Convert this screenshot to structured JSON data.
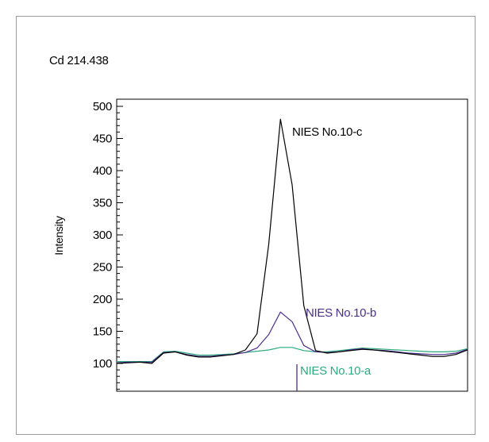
{
  "chart_data": {
    "type": "line",
    "title": "Cd 214.438",
    "xlabel": "",
    "ylabel": "Intensity",
    "ylim": [
      50,
      510
    ],
    "yticks": [
      100,
      150,
      200,
      250,
      300,
      350,
      400,
      450,
      500
    ],
    "grid": false,
    "x": [
      0,
      1,
      2,
      3,
      4,
      5,
      6,
      7,
      8,
      9,
      10,
      11,
      12,
      13,
      14,
      15,
      16,
      17,
      18,
      19,
      20,
      21,
      22,
      23,
      24,
      25,
      26,
      27,
      28,
      29,
      30
    ],
    "series": [
      {
        "name": "NIES No.10-c",
        "color": "#000000",
        "values": [
          100,
          101,
          102,
          100,
          116,
          118,
          113,
          110,
          110,
          112,
          114,
          121,
          146,
          285,
          480,
          378,
          190,
          120,
          116,
          118,
          120,
          122,
          121,
          119,
          117,
          115,
          113,
          111,
          111,
          114,
          121
        ]
      },
      {
        "name": "NIES No.10-b",
        "color": "#4B2E8C",
        "values": [
          101,
          102,
          102,
          102,
          117,
          118,
          114,
          111,
          111,
          113,
          114,
          117,
          124,
          145,
          180,
          165,
          128,
          118,
          117,
          118,
          121,
          123,
          121,
          120,
          118,
          116,
          115,
          114,
          114,
          116,
          122
        ]
      },
      {
        "name": "NIES No.10-a",
        "color": "#2EAA7E",
        "values": [
          103,
          103,
          103,
          103,
          118,
          119,
          116,
          113,
          113,
          114,
          115,
          117,
          119,
          121,
          125,
          125,
          120,
          118,
          118,
          120,
          122,
          124,
          123,
          122,
          121,
          120,
          119,
          118,
          118,
          119,
          123
        ]
      }
    ],
    "annotations": [
      {
        "text": "NIES No.10-c",
        "color": "#000000"
      },
      {
        "text": "NIES No.10-b",
        "color": "#4B2E8C"
      },
      {
        "text": "NIES No.10-a",
        "color": "#2EAA7E"
      }
    ],
    "marker": {
      "x": 15,
      "color": "#4B2E8C"
    }
  }
}
